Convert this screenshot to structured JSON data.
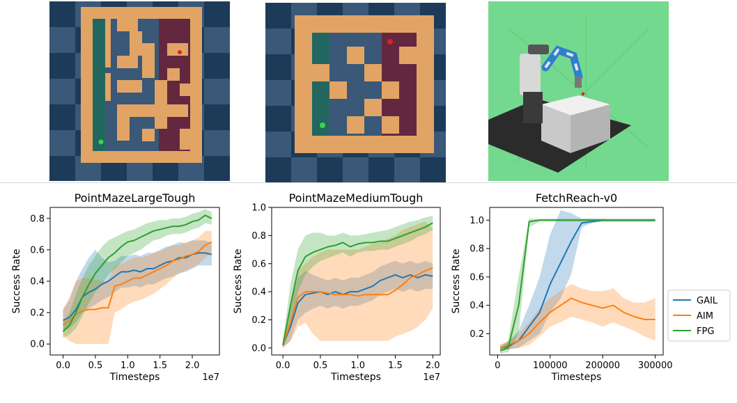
{
  "colors": {
    "GAIL": "#1f77b4",
    "AIM": "#ff7f0e",
    "FPG": "#2ca02c",
    "maze_wall": "#e2a464",
    "floor_dark": "#1d3a59",
    "floor_light": "#3a5878",
    "goal_region": "#6b2036",
    "start_region": "#1f6a5a",
    "env_bg": "#73d98e"
  },
  "images": [
    {
      "name": "pointmaze-large-tough-render",
      "kind": "maze-large"
    },
    {
      "name": "pointmaze-medium-tough-render",
      "kind": "maze-medium"
    },
    {
      "name": "fetchreach-render",
      "kind": "fetch"
    }
  ],
  "legend": {
    "entries": [
      "GAIL",
      "AIM",
      "FPG"
    ],
    "placement": "right"
  },
  "chart_data": [
    {
      "type": "line",
      "title": "PointMazeLargeTough",
      "xlabel": "Timesteps",
      "ylabel": "Success Rate",
      "x_offset_label": "1e7",
      "xlim": [
        -0.2,
        2.42
      ],
      "ylim": [
        -0.07,
        0.87
      ],
      "xticks": [
        0.0,
        0.5,
        1.0,
        1.5,
        2.0
      ],
      "xtick_labels": [
        "0.0",
        "0.5",
        "1.0",
        "1.5",
        "2.0"
      ],
      "yticks": [
        0.0,
        0.2,
        0.4,
        0.6,
        0.8
      ],
      "ytick_labels": [
        "0.0",
        "0.2",
        "0.4",
        "0.6",
        "0.8"
      ],
      "grid": false,
      "x": [
        0.0,
        0.1,
        0.2,
        0.3,
        0.4,
        0.5,
        0.6,
        0.7,
        0.8,
        0.9,
        1.0,
        1.1,
        1.2,
        1.3,
        1.4,
        1.5,
        1.6,
        1.7,
        1.8,
        1.9,
        2.0,
        2.1,
        2.2,
        2.3
      ],
      "series": [
        {
          "name": "GAIL",
          "values": [
            0.15,
            0.17,
            0.22,
            0.3,
            0.33,
            0.35,
            0.38,
            0.4,
            0.43,
            0.46,
            0.46,
            0.47,
            0.46,
            0.48,
            0.48,
            0.5,
            0.52,
            0.53,
            0.55,
            0.55,
            0.57,
            0.58,
            0.58,
            0.57
          ],
          "lower": [
            0.08,
            0.1,
            0.14,
            0.2,
            0.23,
            0.25,
            0.28,
            0.3,
            0.33,
            0.36,
            0.36,
            0.37,
            0.36,
            0.38,
            0.38,
            0.4,
            0.42,
            0.43,
            0.45,
            0.46,
            0.48,
            0.5,
            0.5,
            0.5
          ],
          "upper": [
            0.22,
            0.28,
            0.4,
            0.48,
            0.55,
            0.6,
            0.55,
            0.52,
            0.53,
            0.56,
            0.56,
            0.57,
            0.56,
            0.58,
            0.58,
            0.6,
            0.62,
            0.63,
            0.65,
            0.64,
            0.66,
            0.66,
            0.66,
            0.64
          ]
        },
        {
          "name": "AIM",
          "values": [
            0.12,
            0.15,
            0.19,
            0.21,
            0.22,
            0.22,
            0.23,
            0.23,
            0.37,
            0.38,
            0.4,
            0.42,
            0.42,
            0.44,
            0.46,
            0.48,
            0.5,
            0.53,
            0.54,
            0.56,
            0.57,
            0.59,
            0.63,
            0.65
          ],
          "lower": [
            0.05,
            0.02,
            0.0,
            0.0,
            0.0,
            0.0,
            0.0,
            0.0,
            0.2,
            0.22,
            0.25,
            0.27,
            0.28,
            0.3,
            0.32,
            0.35,
            0.38,
            0.42,
            0.45,
            0.47,
            0.49,
            0.51,
            0.55,
            0.58
          ],
          "upper": [
            0.22,
            0.3,
            0.4,
            0.42,
            0.42,
            0.41,
            0.4,
            0.4,
            0.5,
            0.51,
            0.53,
            0.55,
            0.55,
            0.56,
            0.58,
            0.59,
            0.61,
            0.63,
            0.63,
            0.65,
            0.66,
            0.68,
            0.72,
            0.72
          ]
        },
        {
          "name": "FPG",
          "values": [
            0.08,
            0.12,
            0.2,
            0.3,
            0.38,
            0.45,
            0.5,
            0.55,
            0.58,
            0.62,
            0.65,
            0.66,
            0.68,
            0.7,
            0.72,
            0.73,
            0.74,
            0.75,
            0.75,
            0.76,
            0.78,
            0.79,
            0.82,
            0.8
          ],
          "lower": [
            0.04,
            0.06,
            0.1,
            0.18,
            0.26,
            0.33,
            0.38,
            0.44,
            0.48,
            0.52,
            0.56,
            0.58,
            0.6,
            0.63,
            0.66,
            0.67,
            0.69,
            0.7,
            0.7,
            0.71,
            0.73,
            0.74,
            0.77,
            0.76
          ],
          "upper": [
            0.14,
            0.2,
            0.32,
            0.42,
            0.5,
            0.56,
            0.62,
            0.66,
            0.68,
            0.7,
            0.72,
            0.73,
            0.75,
            0.77,
            0.78,
            0.79,
            0.79,
            0.8,
            0.8,
            0.81,
            0.83,
            0.84,
            0.86,
            0.84
          ]
        }
      ]
    },
    {
      "type": "line",
      "title": "PointMazeMediumTough",
      "xlabel": "Timesteps",
      "ylabel": "Success Rate",
      "x_offset_label": "1e7",
      "xlim": [
        -0.15,
        2.1
      ],
      "ylim": [
        -0.05,
        1.0
      ],
      "xticks": [
        0.0,
        0.5,
        1.0,
        1.5,
        2.0
      ],
      "xtick_labels": [
        "0.0",
        "0.5",
        "1.0",
        "1.5",
        "2.0"
      ],
      "yticks": [
        0.0,
        0.2,
        0.4,
        0.6,
        0.8,
        1.0
      ],
      "ytick_labels": [
        "0.0",
        "0.2",
        "0.4",
        "0.6",
        "0.8",
        "1.0"
      ],
      "grid": false,
      "x": [
        0.0,
        0.1,
        0.2,
        0.3,
        0.4,
        0.5,
        0.6,
        0.7,
        0.8,
        0.9,
        1.0,
        1.1,
        1.2,
        1.3,
        1.4,
        1.5,
        1.6,
        1.7,
        1.8,
        1.9,
        2.0
      ],
      "series": [
        {
          "name": "GAIL",
          "values": [
            0.02,
            0.15,
            0.32,
            0.38,
            0.39,
            0.4,
            0.38,
            0.4,
            0.38,
            0.4,
            0.4,
            0.42,
            0.44,
            0.48,
            0.5,
            0.52,
            0.5,
            0.52,
            0.5,
            0.52,
            0.51
          ],
          "lower": [
            0.0,
            0.05,
            0.2,
            0.25,
            0.28,
            0.3,
            0.28,
            0.3,
            0.28,
            0.3,
            0.3,
            0.32,
            0.34,
            0.38,
            0.4,
            0.42,
            0.4,
            0.42,
            0.4,
            0.42,
            0.42
          ],
          "upper": [
            0.05,
            0.3,
            0.5,
            0.55,
            0.52,
            0.5,
            0.48,
            0.5,
            0.48,
            0.5,
            0.5,
            0.52,
            0.54,
            0.58,
            0.6,
            0.62,
            0.6,
            0.62,
            0.6,
            0.62,
            0.6
          ]
        },
        {
          "name": "AIM",
          "values": [
            0.02,
            0.18,
            0.36,
            0.4,
            0.4,
            0.4,
            0.39,
            0.38,
            0.38,
            0.38,
            0.37,
            0.38,
            0.38,
            0.38,
            0.38,
            0.41,
            0.45,
            0.5,
            0.52,
            0.55,
            0.57
          ],
          "lower": [
            0.0,
            0.05,
            0.15,
            0.18,
            0.1,
            0.05,
            0.05,
            0.05,
            0.05,
            0.05,
            0.05,
            0.05,
            0.05,
            0.05,
            0.05,
            0.08,
            0.1,
            0.12,
            0.15,
            0.2,
            0.28
          ],
          "upper": [
            0.05,
            0.3,
            0.55,
            0.6,
            0.65,
            0.68,
            0.7,
            0.7,
            0.7,
            0.7,
            0.7,
            0.72,
            0.74,
            0.75,
            0.78,
            0.8,
            0.84,
            0.86,
            0.88,
            0.9,
            0.85
          ]
        },
        {
          "name": "FPG",
          "values": [
            0.02,
            0.3,
            0.55,
            0.65,
            0.68,
            0.7,
            0.72,
            0.73,
            0.75,
            0.72,
            0.74,
            0.75,
            0.75,
            0.76,
            0.76,
            0.78,
            0.8,
            0.82,
            0.84,
            0.86,
            0.89
          ],
          "lower": [
            0.0,
            0.15,
            0.4,
            0.52,
            0.58,
            0.62,
            0.64,
            0.66,
            0.68,
            0.65,
            0.68,
            0.69,
            0.69,
            0.7,
            0.7,
            0.72,
            0.74,
            0.76,
            0.79,
            0.81,
            0.84
          ],
          "upper": [
            0.05,
            0.45,
            0.7,
            0.8,
            0.82,
            0.82,
            0.8,
            0.8,
            0.82,
            0.8,
            0.8,
            0.81,
            0.82,
            0.83,
            0.84,
            0.86,
            0.88,
            0.9,
            0.91,
            0.93,
            0.94
          ]
        }
      ]
    },
    {
      "type": "line",
      "title": "FetchReach-v0",
      "xlabel": "Timesteps",
      "ylabel": "Success Rate",
      "xlim": [
        -15000,
        315000
      ],
      "ylim": [
        0.05,
        1.09
      ],
      "xticks": [
        0,
        100000,
        200000,
        300000
      ],
      "xtick_labels": [
        "0",
        "100000",
        "200000",
        "300000"
      ],
      "yticks": [
        0.2,
        0.4,
        0.6,
        0.8,
        1.0
      ],
      "ytick_labels": [
        "0.2",
        "0.4",
        "0.6",
        "0.8",
        "1.0"
      ],
      "grid": false,
      "x": [
        5000,
        20000,
        40000,
        60000,
        80000,
        100000,
        120000,
        140000,
        160000,
        180000,
        200000,
        220000,
        240000,
        260000,
        280000,
        300000
      ],
      "series": [
        {
          "name": "GAIL",
          "values": [
            0.1,
            0.11,
            0.15,
            0.25,
            0.35,
            0.55,
            0.7,
            0.85,
            0.98,
            0.99,
            1.0,
            1.0,
            1.0,
            1.0,
            1.0,
            1.0
          ],
          "lower": [
            0.08,
            0.09,
            0.1,
            0.15,
            0.2,
            0.35,
            0.45,
            0.62,
            0.95,
            0.98,
            0.99,
            0.99,
            0.99,
            0.99,
            0.99,
            0.99
          ],
          "upper": [
            0.12,
            0.14,
            0.22,
            0.4,
            0.6,
            0.9,
            1.07,
            1.05,
            1.01,
            1.01,
            1.01,
            1.0,
            1.0,
            1.0,
            1.0,
            1.0
          ]
        },
        {
          "name": "AIM",
          "values": [
            0.1,
            0.12,
            0.15,
            0.2,
            0.28,
            0.35,
            0.4,
            0.45,
            0.42,
            0.4,
            0.38,
            0.4,
            0.35,
            0.32,
            0.3,
            0.3
          ],
          "lower": [
            0.08,
            0.09,
            0.1,
            0.12,
            0.18,
            0.25,
            0.28,
            0.32,
            0.3,
            0.28,
            0.25,
            0.28,
            0.25,
            0.22,
            0.18,
            0.15
          ],
          "upper": [
            0.12,
            0.15,
            0.2,
            0.28,
            0.38,
            0.45,
            0.5,
            0.55,
            0.52,
            0.5,
            0.5,
            0.52,
            0.45,
            0.42,
            0.42,
            0.45
          ]
        },
        {
          "name": "FPG",
          "values": [
            0.08,
            0.1,
            0.4,
            0.99,
            1.0,
            1.0,
            1.0,
            1.0,
            1.0,
            1.0,
            1.0,
            1.0,
            1.0,
            1.0,
            1.0,
            1.0
          ],
          "lower": [
            0.06,
            0.07,
            0.2,
            0.95,
            0.99,
            0.99,
            0.99,
            0.99,
            0.99,
            0.99,
            0.99,
            0.99,
            0.99,
            0.99,
            0.99,
            0.99
          ],
          "upper": [
            0.1,
            0.15,
            0.6,
            1.01,
            1.01,
            1.01,
            1.01,
            1.01,
            1.01,
            1.01,
            1.01,
            1.01,
            1.01,
            1.01,
            1.01,
            1.01
          ]
        }
      ]
    }
  ]
}
